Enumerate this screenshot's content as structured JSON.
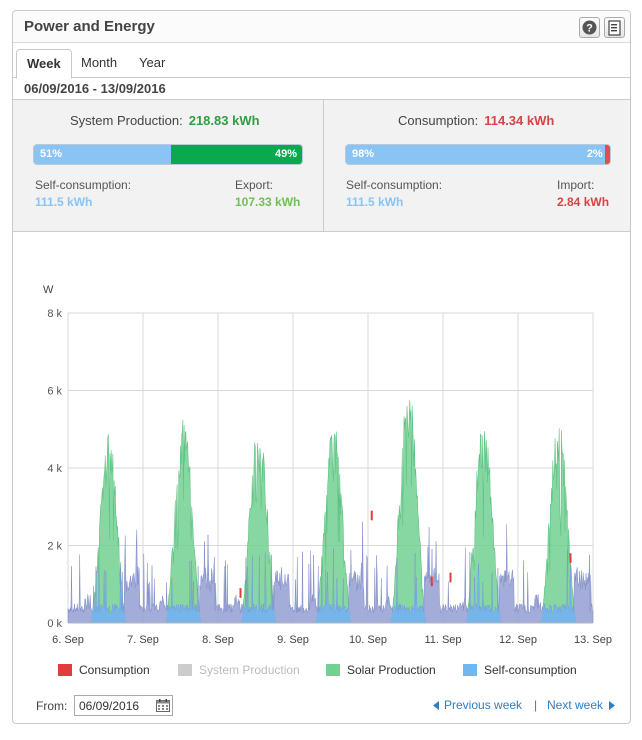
{
  "panel": {
    "title": "Power and Energy",
    "help_icon": "help-icon",
    "export_icon": "export-icon"
  },
  "tabs": [
    {
      "label": "Week",
      "active": true
    },
    {
      "label": "Month",
      "active": false
    },
    {
      "label": "Year",
      "active": false
    }
  ],
  "date_range": "06/09/2016 - 13/09/2016",
  "production": {
    "label": "System Production:",
    "value": "218.83 kWh",
    "bar_left_pct_label": "51%",
    "bar_right_pct_label": "49%",
    "bar_left_fraction": 0.51,
    "self_label": "Self-consumption:",
    "self_value": "111.5 kWh",
    "export_label": "Export:",
    "export_value": "107.33 kWh"
  },
  "consumption": {
    "label": "Consumption:",
    "value": "114.34 kWh",
    "bar_left_pct_label": "98%",
    "bar_right_pct_label": "2%",
    "bar_left_fraction": 0.98,
    "self_label": "Self-consumption:",
    "self_value": "111.5 kWh",
    "import_label": "Import:",
    "import_value": "2.84 kWh"
  },
  "colors": {
    "self_blue": "#89c4f4",
    "export_green": "#0aa84f",
    "import_red": "#e34d4d",
    "production_green_text": "#2f9e44",
    "consumption_red_text": "#d64545",
    "solar_area": "#72d092",
    "selfcons_area": "#6fb7ee",
    "consumption_area": "#9aa4d6"
  },
  "chart_data": {
    "type": "area",
    "ylabel": "W",
    "y_ticks": [
      "0 k",
      "2 k",
      "4 k",
      "6 k",
      "8 k"
    ],
    "ylim": [
      0,
      8000
    ],
    "x_ticks": [
      "6. Sep",
      "7. Sep",
      "8. Sep",
      "9. Sep",
      "10. Sep",
      "11. Sep",
      "12. Sep",
      "13. Sep"
    ],
    "grid": true,
    "series": [
      {
        "name": "Consumption",
        "color": "#e23b3b"
      },
      {
        "name": "System Production",
        "color": "#cccccc",
        "disabled": true
      },
      {
        "name": "Solar Production",
        "color": "#72d092",
        "daily_peaks_w": [
          5000,
          5300,
          5200,
          5200,
          6100,
          5300,
          5300
        ]
      },
      {
        "name": "Self-consumption",
        "color": "#6fb7ee"
      }
    ],
    "legend_position": "bottom"
  },
  "footer": {
    "from_label": "From:",
    "from_value": "06/09/2016",
    "prev_label": "Previous week",
    "separator": "|",
    "next_label": "Next week"
  }
}
